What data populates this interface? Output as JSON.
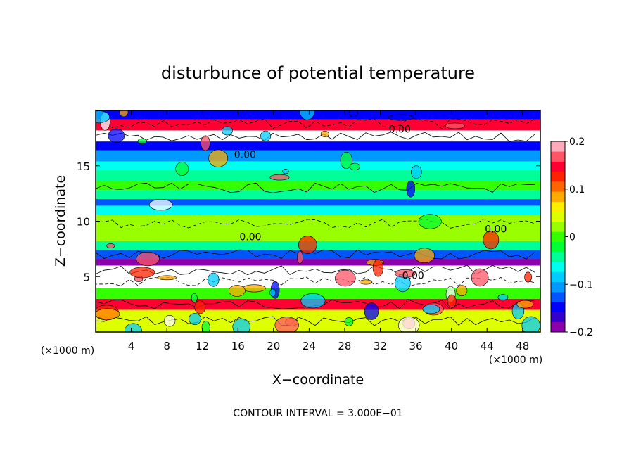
{
  "chart_data": {
    "type": "heatmap",
    "title": "disturbunce of potential temperature",
    "xlabel": "X−coordinate",
    "ylabel": "Z−coordinate",
    "x_unit": "(×1000 m)",
    "z_unit": "(×1000 m)",
    "xlim": [
      0,
      50
    ],
    "ylim": [
      0,
      20
    ],
    "x_ticks": [
      4,
      8,
      12,
      16,
      20,
      24,
      28,
      32,
      36,
      40,
      44,
      48
    ],
    "x_tick_labels": [
      "4",
      "8",
      "12",
      "16",
      "20",
      "24",
      "28",
      "32",
      "36",
      "40",
      "44",
      "48"
    ],
    "y_ticks": [
      5,
      10,
      15
    ],
    "y_tick_labels": [
      "5",
      "10",
      "15"
    ],
    "colorbar": {
      "range": [
        -0.2,
        0.2
      ],
      "ticks": [
        0.2,
        0.1,
        0,
        -0.1,
        -0.2
      ],
      "tick_labels": [
        "0.2",
        "0.1",
        "0",
        "−0.1",
        "−0.2"
      ],
      "colors": [
        "#8b00aa",
        "#3300cc",
        "#0000ff",
        "#0055ff",
        "#0099ff",
        "#00ccff",
        "#00ffee",
        "#00ff99",
        "#00ff33",
        "#33ff00",
        "#99ff00",
        "#ddff00",
        "#ffee00",
        "#ffaa00",
        "#ff6600",
        "#ff2200",
        "#ff0033",
        "#ff5566",
        "#ffaabb"
      ]
    },
    "layers": [
      {
        "z": [
          0,
          2.0
        ],
        "value": 0.05
      },
      {
        "z": [
          2.0,
          3.0
        ],
        "value": 0.15
      },
      {
        "z": [
          3.0,
          4.0
        ],
        "value": 0.0
      },
      {
        "z": [
          4.0,
          5.0
        ],
        "value": 0.3
      },
      {
        "z": [
          5.0,
          6.0
        ],
        "value": 0.25
      },
      {
        "z": [
          6.0,
          6.6
        ],
        "value": -0.18
      },
      {
        "z": [
          6.6,
          7.4
        ],
        "value": -0.13
      },
      {
        "z": [
          7.4,
          8.2
        ],
        "value": -0.05
      },
      {
        "z": [
          8.2,
          9.4
        ],
        "value": 0.02
      },
      {
        "z": [
          9.4,
          10.6
        ],
        "value": 0.03
      },
      {
        "z": [
          10.6,
          11.4
        ],
        "value": -0.06
      },
      {
        "z": [
          11.4,
          12.0
        ],
        "value": -0.12
      },
      {
        "z": [
          12.0,
          12.8
        ],
        "value": -0.05
      },
      {
        "z": [
          12.8,
          13.6
        ],
        "value": 0.0
      },
      {
        "z": [
          13.6,
          14.6
        ],
        "value": -0.04
      },
      {
        "z": [
          14.6,
          15.4
        ],
        "value": -0.07
      },
      {
        "z": [
          15.4,
          16.4
        ],
        "value": -0.1
      },
      {
        "z": [
          16.4,
          17.2
        ],
        "value": -0.15
      },
      {
        "z": [
          17.2,
          18.2
        ],
        "value": 0.3
      },
      {
        "z": [
          18.2,
          19.2
        ],
        "value": 0.15
      },
      {
        "z": [
          19.2,
          20.0
        ],
        "value": -0.14
      }
    ],
    "contour_labels": [
      {
        "text": "0.00",
        "x": 34.2,
        "z": 18.0
      },
      {
        "text": "0.00",
        "x": 16.8,
        "z": 15.7
      },
      {
        "text": "0.00",
        "x": 17.4,
        "z": 8.3
      },
      {
        "text": "0.00",
        "x": 45.0,
        "z": 9.0
      },
      {
        "text": "0.00",
        "x": 35.7,
        "z": 4.8
      }
    ],
    "footnote": "CONTOUR INTERVAL = 3.000E−01"
  }
}
